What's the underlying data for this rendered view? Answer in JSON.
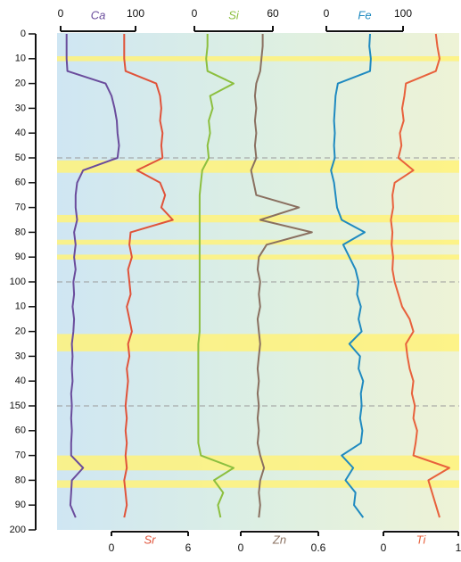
{
  "chart_data": {
    "type": "line",
    "ylim": [
      0,
      200
    ],
    "yticks": [
      0,
      10,
      20,
      30,
      40,
      50,
      60,
      70,
      80,
      90,
      100,
      {
        "value": 110,
        "label": "10"
      },
      {
        "value": 120,
        "label": "20"
      },
      {
        "value": 130,
        "label": "30"
      },
      {
        "value": 140,
        "label": "40"
      },
      150,
      {
        "value": 160,
        "label": "60"
      },
      {
        "value": 170,
        "label": "70"
      },
      {
        "value": 180,
        "label": "80"
      },
      {
        "value": 190,
        "label": "90"
      },
      200
    ],
    "depth": [
      0,
      5,
      10,
      15,
      20,
      25,
      30,
      35,
      40,
      45,
      50,
      55,
      60,
      65,
      70,
      75,
      80,
      85,
      90,
      95,
      100,
      105,
      110,
      115,
      120,
      125,
      130,
      135,
      140,
      145,
      150,
      155,
      160,
      165,
      170,
      175,
      180,
      185,
      190,
      195
    ],
    "highlight_bands": [
      [
        9,
        11
      ],
      [
        51,
        56
      ],
      [
        73,
        76
      ],
      [
        83,
        85
      ],
      [
        89,
        91
      ],
      [
        121,
        128
      ],
      [
        170,
        176
      ],
      [
        180,
        183
      ]
    ],
    "dashed_lines": [
      50,
      100,
      150
    ],
    "series": [
      {
        "name": "Ca",
        "color": "#6a4c9c",
        "position": "top",
        "xlim": [
          0,
          100
        ],
        "xticks": [
          0,
          100
        ],
        "values": [
          8,
          8,
          8,
          9,
          60,
          68,
          72,
          75,
          76,
          78,
          76,
          30,
          22,
          20,
          20,
          22,
          18,
          20,
          18,
          20,
          17,
          18,
          16,
          18,
          17,
          15,
          16,
          15,
          16,
          14,
          15,
          14,
          15,
          14,
          14,
          30,
          15,
          14,
          13,
          20
        ]
      },
      {
        "name": "Sr",
        "color": "#e0533a",
        "position": "bottom",
        "xlim": [
          0,
          6
        ],
        "xticks": [
          0,
          6
        ],
        "values": [
          1.0,
          1.0,
          1.0,
          1.1,
          3.5,
          3.8,
          3.9,
          3.8,
          4.0,
          3.9,
          4.0,
          2.0,
          3.8,
          4.2,
          3.9,
          4.8,
          1.5,
          1.4,
          1.6,
          1.3,
          1.4,
          1.5,
          1.2,
          1.4,
          1.6,
          1.3,
          1.4,
          1.2,
          1.3,
          1.2,
          1.1,
          1.2,
          1.1,
          1.2,
          1.1,
          1.2,
          1.0,
          1.1,
          1.2,
          1.0
        ]
      },
      {
        "name": "Si",
        "color": "#8cbf3f",
        "position": "top",
        "xlim": [
          0,
          60
        ],
        "xticks": [
          0,
          60
        ],
        "values": [
          10,
          10,
          9,
          10,
          30,
          12,
          14,
          11,
          12,
          10,
          11,
          6,
          5,
          4,
          4,
          4,
          4,
          4,
          4,
          4,
          4,
          4,
          4,
          4,
          4,
          3,
          3,
          3,
          3,
          3,
          3,
          3,
          3,
          3,
          5,
          30,
          15,
          22,
          18,
          20
        ]
      },
      {
        "name": "Zn",
        "color": "#8a7060",
        "position": "bottom",
        "xlim": [
          0,
          0.6
        ],
        "xticks": [
          0,
          0.6
        ],
        "values": [
          0.17,
          0.17,
          0.16,
          0.15,
          0.12,
          0.11,
          0.12,
          0.11,
          0.12,
          0.11,
          0.12,
          0.08,
          0.1,
          0.12,
          0.45,
          0.15,
          0.55,
          0.2,
          0.14,
          0.13,
          0.15,
          0.14,
          0.15,
          0.13,
          0.14,
          0.15,
          0.14,
          0.13,
          0.14,
          0.13,
          0.14,
          0.13,
          0.14,
          0.13,
          0.15,
          0.18,
          0.15,
          0.14,
          0.15,
          0.14
        ]
      },
      {
        "name": "Fe",
        "color": "#1f8ac0",
        "position": "top",
        "xlim": [
          0,
          100
        ],
        "xticks": [
          0,
          100
        ],
        "values": [
          57,
          56,
          58,
          57,
          15,
          12,
          11,
          10,
          11,
          10,
          11,
          6,
          10,
          12,
          14,
          20,
          50,
          22,
          30,
          38,
          42,
          40,
          45,
          42,
          46,
          30,
          44,
          42,
          48,
          45,
          46,
          44,
          47,
          45,
          20,
          35,
          25,
          38,
          36,
          48
        ]
      },
      {
        "name": "Ti",
        "color": "#e8613c",
        "position": "bottom",
        "xlim": [
          0,
          1
        ],
        "xticks": [
          0,
          1
        ],
        "values": [
          0.7,
          0.72,
          0.75,
          0.7,
          0.3,
          0.28,
          0.25,
          0.27,
          0.22,
          0.24,
          0.2,
          0.4,
          0.15,
          0.12,
          0.13,
          0.1,
          0.12,
          0.11,
          0.13,
          0.12,
          0.15,
          0.2,
          0.25,
          0.35,
          0.4,
          0.3,
          0.32,
          0.35,
          0.4,
          0.38,
          0.42,
          0.4,
          0.45,
          0.43,
          0.4,
          0.88,
          0.6,
          0.65,
          0.7,
          0.75
        ]
      }
    ]
  }
}
